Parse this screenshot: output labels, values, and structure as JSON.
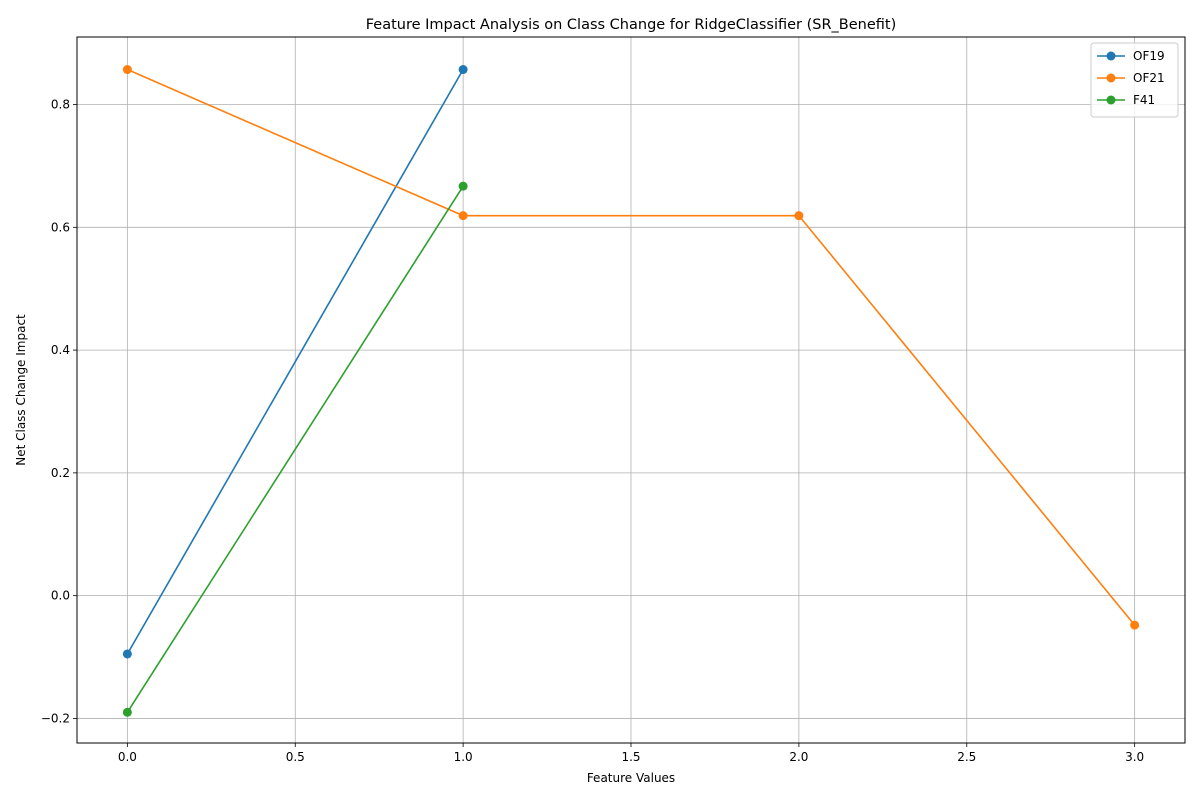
{
  "chart_data": {
    "type": "line",
    "title": "Feature Impact Analysis on Class Change for RidgeClassifier (SR_Benefit)",
    "xlabel": "Feature Values",
    "ylabel": "Net Class Change Impact",
    "xlim": [
      -0.15,
      3.15
    ],
    "ylim": [
      -0.24,
      0.91
    ],
    "xticks": [
      0.0,
      0.5,
      1.0,
      1.5,
      2.0,
      2.5,
      3.0
    ],
    "xtick_labels": [
      "0.0",
      "0.5",
      "1.0",
      "1.5",
      "2.0",
      "2.5",
      "3.0"
    ],
    "yticks": [
      -0.2,
      0.0,
      0.2,
      0.4,
      0.6,
      0.8
    ],
    "ytick_labels": [
      "−0.2",
      "0.0",
      "0.2",
      "0.4",
      "0.6",
      "0.8"
    ],
    "grid": true,
    "legend_position": "top-right",
    "series": [
      {
        "name": "OF19",
        "color": "#1f77b4",
        "x": [
          0,
          1
        ],
        "y": [
          -0.095,
          0.857
        ]
      },
      {
        "name": "OF21",
        "color": "#ff7f0e",
        "x": [
          0,
          1,
          2,
          3
        ],
        "y": [
          0.857,
          0.619,
          0.619,
          -0.048
        ]
      },
      {
        "name": "F41",
        "color": "#2ca02c",
        "x": [
          0,
          1
        ],
        "y": [
          -0.19,
          0.667
        ]
      }
    ]
  }
}
